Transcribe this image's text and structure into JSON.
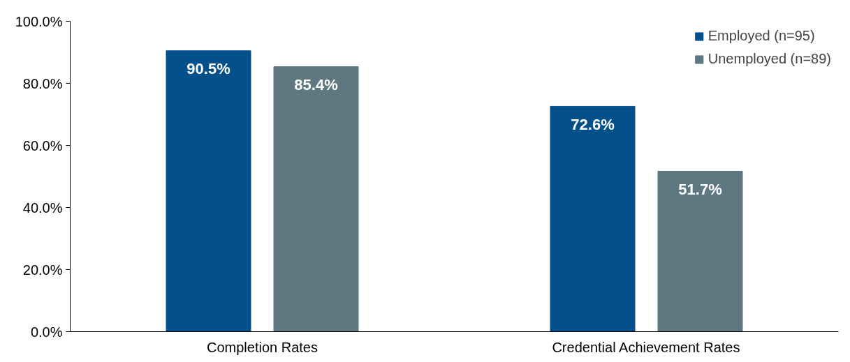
{
  "chart_data": {
    "type": "bar",
    "categories": [
      "Completion Rates",
      "Credential Achievement Rates"
    ],
    "series": [
      {
        "name": "Employed (n=95)",
        "color": "#03508a",
        "values": [
          90.5,
          72.6
        ],
        "value_labels": [
          "90.5%",
          "72.6%"
        ]
      },
      {
        "name": "Unemployed (n=89)",
        "color": "#5f7780",
        "values": [
          85.4,
          51.7
        ],
        "value_labels": [
          "85.4%",
          "51.7%"
        ]
      }
    ],
    "ylim": [
      0,
      100
    ],
    "yticks": [
      {
        "value": 0,
        "label": "0.0%"
      },
      {
        "value": 20,
        "label": "20.0%"
      },
      {
        "value": 40,
        "label": "40.0%"
      },
      {
        "value": 60,
        "label": "60.0%"
      },
      {
        "value": 80,
        "label": "80.0%"
      },
      {
        "value": 100,
        "label": "100.0%"
      }
    ],
    "grid": false,
    "legend": "top right"
  }
}
